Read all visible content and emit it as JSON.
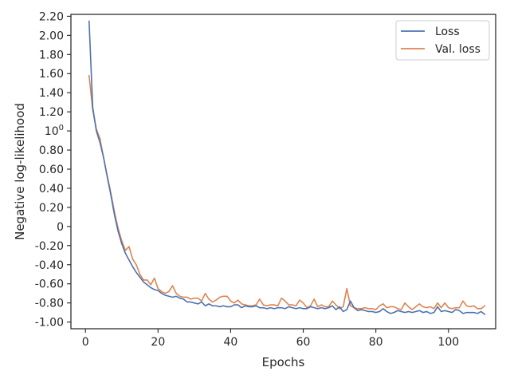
{
  "chart_data": {
    "type": "line",
    "xlabel": "Epochs",
    "ylabel": "Negative log-likelihood",
    "xlim": [
      -4,
      113
    ],
    "ylim": [
      -1.07,
      2.22
    ],
    "x_ticks": [
      0,
      20,
      40,
      60,
      80,
      100
    ],
    "x_tick_labels": [
      "0",
      "20",
      "40",
      "60",
      "80",
      "100"
    ],
    "y_ticks": [
      2.2,
      2.0,
      1.8,
      1.6,
      1.4,
      1.2,
      1.0,
      0.8,
      0.6,
      0.4,
      0.2,
      0,
      -0.2,
      -0.4,
      -0.6,
      -0.8,
      -1.0
    ],
    "y_tick_labels": [
      "2.20",
      "2.00",
      "1.80",
      "1.60",
      "1.40",
      "1.20",
      "10⁰",
      "0.80",
      "0.60",
      "0.40",
      "0.20",
      "0",
      "-0.20",
      "-0.40",
      "-0.60",
      "-0.80",
      "-1.00"
    ],
    "grid": false,
    "legend_position": "top-right",
    "x": [
      1,
      2,
      3,
      4,
      5,
      6,
      7,
      8,
      9,
      10,
      11,
      12,
      13,
      14,
      15,
      16,
      17,
      18,
      19,
      20,
      21,
      22,
      23,
      24,
      25,
      26,
      27,
      28,
      29,
      30,
      31,
      32,
      33,
      34,
      35,
      36,
      37,
      38,
      39,
      40,
      41,
      42,
      43,
      44,
      45,
      46,
      47,
      48,
      49,
      50,
      51,
      52,
      53,
      54,
      55,
      56,
      57,
      58,
      59,
      60,
      61,
      62,
      63,
      64,
      65,
      66,
      67,
      68,
      69,
      70,
      71,
      72,
      73,
      74,
      75,
      76,
      77,
      78,
      79,
      80,
      81,
      82,
      83,
      84,
      85,
      86,
      87,
      88,
      89,
      90,
      91,
      92,
      93,
      94,
      95,
      96,
      97,
      98,
      99,
      100,
      101,
      102,
      103,
      104,
      105,
      106,
      107,
      108,
      109,
      110
    ],
    "series": [
      {
        "name": "Loss",
        "color": "#4c72b0",
        "values": [
          2.15,
          1.25,
          1.0,
          0.88,
          0.72,
          0.52,
          0.33,
          0.12,
          -0.05,
          -0.18,
          -0.28,
          -0.35,
          -0.42,
          -0.48,
          -0.53,
          -0.58,
          -0.61,
          -0.64,
          -0.66,
          -0.67,
          -0.7,
          -0.72,
          -0.73,
          -0.74,
          -0.73,
          -0.75,
          -0.76,
          -0.79,
          -0.79,
          -0.8,
          -0.81,
          -0.79,
          -0.83,
          -0.81,
          -0.83,
          -0.83,
          -0.84,
          -0.83,
          -0.84,
          -0.84,
          -0.82,
          -0.82,
          -0.85,
          -0.83,
          -0.84,
          -0.84,
          -0.83,
          -0.85,
          -0.85,
          -0.86,
          -0.85,
          -0.86,
          -0.85,
          -0.85,
          -0.86,
          -0.84,
          -0.85,
          -0.86,
          -0.85,
          -0.86,
          -0.86,
          -0.84,
          -0.85,
          -0.86,
          -0.85,
          -0.86,
          -0.85,
          -0.83,
          -0.87,
          -0.84,
          -0.89,
          -0.87,
          -0.78,
          -0.85,
          -0.88,
          -0.87,
          -0.88,
          -0.89,
          -0.89,
          -0.9,
          -0.89,
          -0.86,
          -0.89,
          -0.91,
          -0.9,
          -0.88,
          -0.89,
          -0.9,
          -0.89,
          -0.9,
          -0.89,
          -0.88,
          -0.9,
          -0.89,
          -0.91,
          -0.9,
          -0.84,
          -0.89,
          -0.88,
          -0.89,
          -0.9,
          -0.87,
          -0.88,
          -0.91,
          -0.9,
          -0.9,
          -0.9,
          -0.91,
          -0.89,
          -0.92
        ]
      },
      {
        "name": "Val. loss",
        "color": "#dd8452",
        "values": [
          1.58,
          1.22,
          1.02,
          0.92,
          0.72,
          0.53,
          0.35,
          0.15,
          -0.02,
          -0.15,
          -0.25,
          -0.21,
          -0.34,
          -0.4,
          -0.5,
          -0.56,
          -0.56,
          -0.61,
          -0.54,
          -0.65,
          -0.68,
          -0.7,
          -0.68,
          -0.62,
          -0.7,
          -0.73,
          -0.74,
          -0.74,
          -0.76,
          -0.75,
          -0.75,
          -0.78,
          -0.7,
          -0.76,
          -0.79,
          -0.77,
          -0.74,
          -0.73,
          -0.73,
          -0.78,
          -0.8,
          -0.77,
          -0.81,
          -0.82,
          -0.83,
          -0.83,
          -0.82,
          -0.76,
          -0.82,
          -0.83,
          -0.82,
          -0.82,
          -0.83,
          -0.75,
          -0.78,
          -0.82,
          -0.82,
          -0.83,
          -0.77,
          -0.8,
          -0.85,
          -0.83,
          -0.76,
          -0.84,
          -0.82,
          -0.84,
          -0.84,
          -0.78,
          -0.82,
          -0.86,
          -0.84,
          -0.65,
          -0.83,
          -0.85,
          -0.86,
          -0.86,
          -0.85,
          -0.86,
          -0.86,
          -0.87,
          -0.83,
          -0.81,
          -0.85,
          -0.84,
          -0.84,
          -0.86,
          -0.87,
          -0.8,
          -0.84,
          -0.87,
          -0.84,
          -0.81,
          -0.84,
          -0.85,
          -0.84,
          -0.86,
          -0.8,
          -0.85,
          -0.8,
          -0.85,
          -0.86,
          -0.85,
          -0.85,
          -0.78,
          -0.83,
          -0.84,
          -0.83,
          -0.86,
          -0.86,
          -0.83
        ]
      }
    ]
  }
}
